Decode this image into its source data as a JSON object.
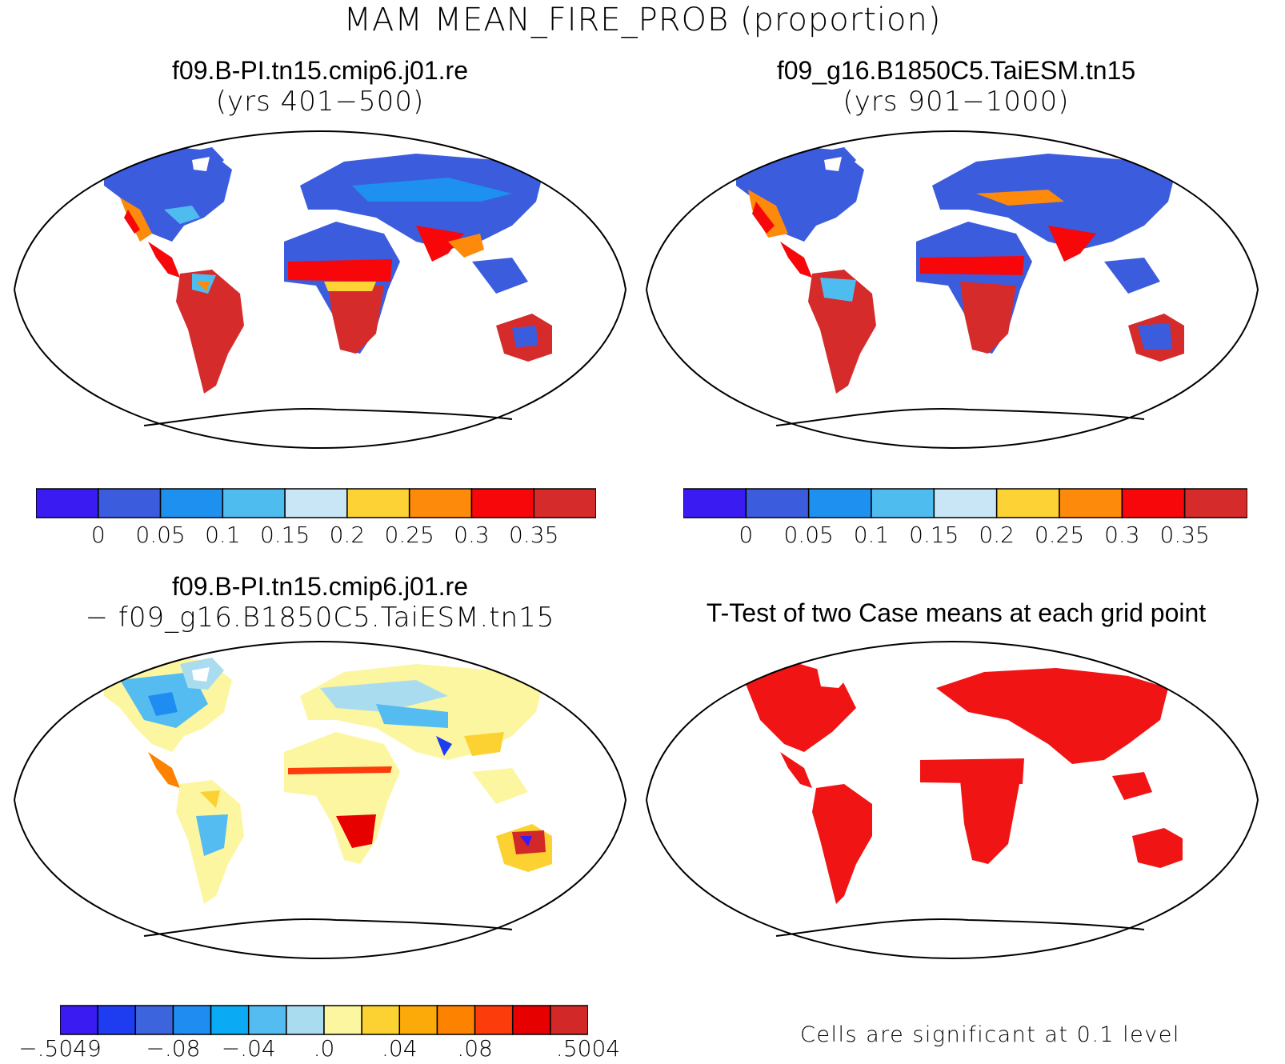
{
  "figure_title": "MAM MEAN_FIRE_PROB (proportion)",
  "panels": {
    "top_left": {
      "title_line1": "f09.B-PI.tn15.cmip6.j01.re",
      "title_line2": "(yrs 401−500)"
    },
    "top_right": {
      "title_line1": "f09_g16.B1850C5.TaiESM.tn15",
      "title_line2": "(yrs 901−1000)"
    },
    "bottom_left": {
      "title_line1": "f09.B-PI.tn15.cmip6.j01.re",
      "title_line2": "− f09_g16.B1850C5.TaiESM.tn15"
    },
    "bottom_right": {
      "title_line1": "T-Test of two Case means at each grid point",
      "note": "Cells are significant at 0.1 level"
    }
  },
  "colorbar_abs": {
    "colors": [
      "#3a1cf2",
      "#3c5cde",
      "#1e90f0",
      "#4fbcf0",
      "#c8e6f6",
      "#fcd235",
      "#fd8a0a",
      "#f7060a",
      "#d52b2b"
    ],
    "labels": [
      "0",
      "0.05",
      "0.1",
      "0.15",
      "0.2",
      "0.25",
      "0.3",
      "0.35"
    ]
  },
  "colorbar_diff": {
    "colors": [
      "#3a1cf2",
      "#1e3cf0",
      "#3c64dc",
      "#1e8cf0",
      "#0aaaf4",
      "#54bcf0",
      "#aadcf0",
      "#fcf6a0",
      "#fcd232",
      "#fcaa0a",
      "#fc8200",
      "#fc3c0a",
      "#e60000",
      "#d22828"
    ],
    "labels": [
      "−.5049",
      "−.08",
      "−.04",
      ".0",
      ".04",
      ".08",
      ".5004"
    ]
  },
  "significance_color": "#f01414"
}
